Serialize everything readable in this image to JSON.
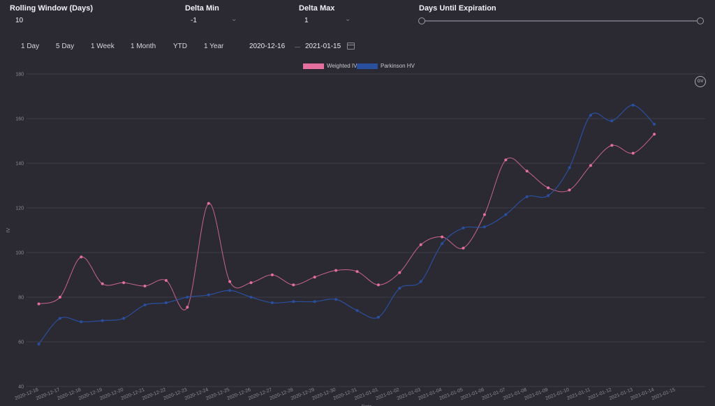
{
  "controls": {
    "rolling_window": {
      "label": "Rolling Window (Days)",
      "value": "10"
    },
    "delta_min": {
      "label": "Delta Min",
      "value": "-1"
    },
    "delta_max": {
      "label": "Delta Max",
      "value": "1"
    },
    "days_until_expiration": {
      "label": "Days Until Expiration"
    }
  },
  "ranges": [
    "1 Day",
    "5 Day",
    "1 Week",
    "1 Month",
    "YTD",
    "1 Year"
  ],
  "dates": {
    "start": "2020-12-16",
    "separator": "—",
    "end": "2021-01-15"
  },
  "gv_label": "GV",
  "colors": {
    "background": "#2b2a33",
    "weighted_iv": "#e46fa0",
    "parkinson_hv": "#2a4f9e"
  },
  "chart_data": {
    "type": "line",
    "x": [
      "2020-12-16",
      "2020-12-17",
      "2020-12-18",
      "2020-12-19",
      "2020-12-20",
      "2020-12-21",
      "2020-12-22",
      "2020-12-23",
      "2020-12-24",
      "2020-12-25",
      "2020-12-26",
      "2020-12-27",
      "2020-12-28",
      "2020-12-29",
      "2020-12-30",
      "2020-12-31",
      "2021-01-01",
      "2021-01-02",
      "2021-01-03",
      "2021-01-04",
      "2021-01-05",
      "2021-01-06",
      "2021-01-07",
      "2021-01-08",
      "2021-01-09",
      "2021-01-10",
      "2021-01-11",
      "2021-01-12",
      "2021-01-13",
      "2021-01-14",
      "2021-01-15"
    ],
    "series": [
      {
        "name": "Weighted IV",
        "color": "#e46fa0",
        "values": [
          77,
          80,
          98,
          86,
          86.5,
          85,
          87.5,
          75.5,
          122,
          87,
          86.5,
          90,
          85.5,
          89,
          92,
          91.5,
          85.5,
          91,
          103.5,
          107,
          102,
          117,
          141.5,
          136.5,
          129,
          128,
          139,
          148,
          144.5,
          153,
          null
        ]
      },
      {
        "name": "Parkinson HV",
        "color": "#2a4f9e",
        "values": [
          59,
          70.5,
          69,
          69.5,
          70.5,
          76.5,
          77.5,
          80,
          81,
          83,
          80,
          77.5,
          78,
          78,
          79,
          74,
          71,
          84,
          87,
          104,
          111,
          111.5,
          117,
          125,
          125.5,
          138,
          161.5,
          159,
          166,
          157.5,
          null
        ]
      }
    ],
    "ylabel": "IV",
    "xlabel": "Date",
    "ylim": [
      40,
      180
    ],
    "yticks": [
      40,
      60,
      80,
      100,
      120,
      140,
      160,
      180
    ],
    "legend": "top-center",
    "grid": true
  }
}
